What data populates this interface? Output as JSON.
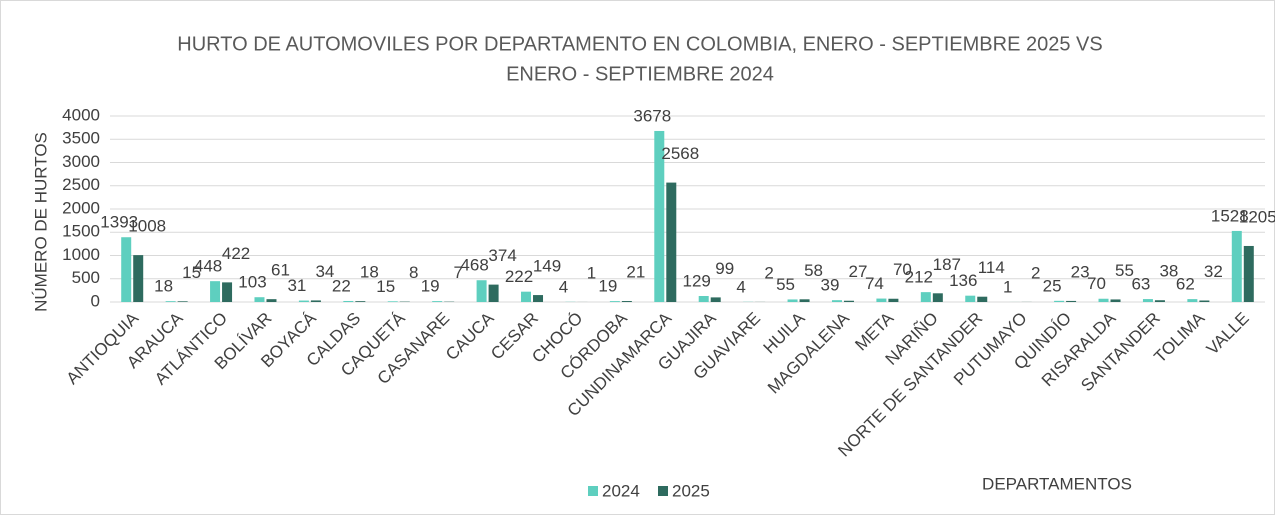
{
  "chart_data": {
    "type": "bar",
    "title": "HURTO DE AUTOMOVILES POR DEPARTAMENTO EN COLOMBIA, ENERO - SEPTIEMBRE 2025 VS ENERO - SEPTIEMBRE 2024",
    "y_axis_label": "NÚMERO DE HURTOS",
    "x_axis_label": "DEPARTAMENTOS",
    "categories": [
      "ANTIOQUIA",
      "ARAUCA",
      "ATLÁNTICO",
      "BOLÍVAR",
      "BOYACÁ",
      "CALDAS",
      "CAQUETÁ",
      "CASANARE",
      "CAUCA",
      "CESAR",
      "CHOCÓ",
      "CÓRDOBA",
      "CUNDINAMARCA",
      "GUAJIRA",
      "GUAVIARE",
      "HUILA",
      "MAGDALENA",
      "META",
      "NARIÑO",
      "NORTE DE SANTANDER",
      "PUTUMAYO",
      "QUINDÍO",
      "RISARALDA",
      "SANTANDER",
      "TOLIMA",
      "VALLE"
    ],
    "series": [
      {
        "name": "2024",
        "color": "#5ecfbf",
        "values": [
          1393,
          18,
          448,
          103,
          31,
          22,
          15,
          19,
          468,
          222,
          4,
          19,
          3678,
          129,
          4,
          55,
          39,
          74,
          212,
          136,
          1,
          25,
          70,
          63,
          62,
          1528
        ]
      },
      {
        "name": "2025",
        "color": "#2e6b5f",
        "values": [
          1008,
          15,
          422,
          61,
          34,
          18,
          8,
          7,
          374,
          149,
          1,
          21,
          2568,
          99,
          2,
          58,
          27,
          70,
          187,
          114,
          2,
          23,
          55,
          38,
          32,
          1205
        ]
      }
    ],
    "ylim": [
      0,
      4000
    ],
    "yticks": [
      0,
      500,
      1000,
      1500,
      2000,
      2500,
      3000,
      3500,
      4000
    ],
    "grid": true
  }
}
